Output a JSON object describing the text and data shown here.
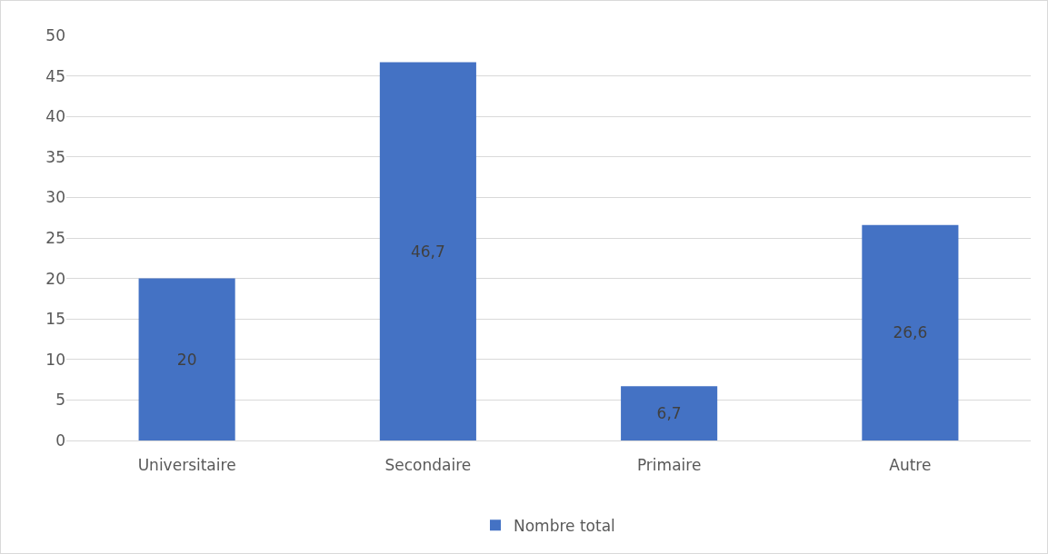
{
  "chart_data": {
    "type": "bar",
    "categories": [
      "Universitaire",
      "Secondaire",
      "Primaire",
      "Autre"
    ],
    "series": [
      {
        "name": "Nombre total",
        "color": "#4472c4",
        "values": [
          20,
          46.7,
          6.7,
          26.6
        ],
        "value_labels": [
          "20",
          "46,7",
          "6,7",
          "26,6"
        ]
      }
    ],
    "ylim": [
      0,
      50
    ],
    "yticks": [
      0,
      5,
      10,
      15,
      20,
      25,
      30,
      35,
      40,
      45,
      50
    ],
    "grid": "y",
    "legend": "bottom"
  }
}
